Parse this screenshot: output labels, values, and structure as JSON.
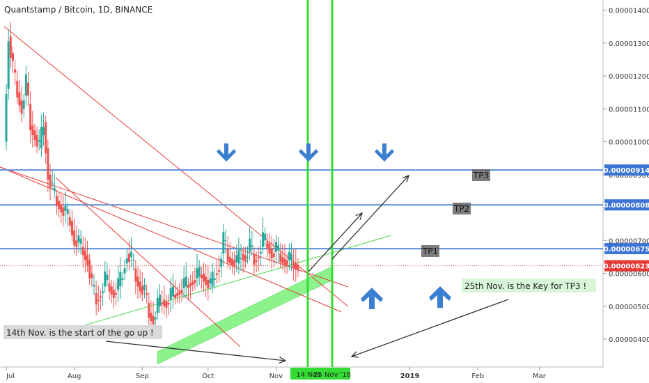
{
  "chart_data": {
    "type": "candlestick",
    "title": "Quantstamp / Bitcoin, 1D, BINANCE",
    "y_ticks": [
      "0.00001400",
      "0.00001300",
      "0.00001200",
      "0.00001100",
      "0.00001000",
      "0.00000900",
      "0.00000800",
      "0.00000700",
      "0.00000600",
      "0.00000500",
      "0.00000400"
    ],
    "y_tick_values": [
      1400,
      1300,
      1200,
      1100,
      1000,
      900,
      800,
      700,
      600,
      500,
      400
    ],
    "y_unit_scale": 1e-08,
    "ylim": [
      325,
      1450
    ],
    "x_ticks": [
      "Jul",
      "Aug",
      "Sep",
      "Oct",
      "Nov",
      "2019",
      "Feb",
      "Mar"
    ],
    "x_tick_days": [
      0,
      31,
      62,
      92,
      123,
      184,
      215,
      243
    ],
    "xlim_days": [
      -2,
      300
    ],
    "horizontal_levels": [
      {
        "value": 914,
        "label": "0.00000914",
        "tp": "TP3"
      },
      {
        "value": 808,
        "label": "0.00000808",
        "tp": "TP2"
      },
      {
        "value": 675,
        "label": "0.00000675",
        "tp": "TP1"
      }
    ],
    "current_price": {
      "value": 623,
      "label": "0.00000623"
    },
    "vertical_lines": [
      {
        "day": 136,
        "label": "14 Nov"
      },
      {
        "day": 147,
        "label": "25 Nov '18"
      }
    ],
    "candles_close_path": [
      [
        0,
        1000
      ],
      [
        2,
        1320
      ],
      [
        4,
        1220
      ],
      [
        6,
        1150
      ],
      [
        8,
        1100
      ],
      [
        10,
        1180
      ],
      [
        12,
        1050
      ],
      [
        14,
        1020
      ],
      [
        16,
        980
      ],
      [
        18,
        1060
      ],
      [
        20,
        900
      ],
      [
        22,
        850
      ],
      [
        24,
        820
      ],
      [
        26,
        800
      ],
      [
        28,
        780
      ],
      [
        30,
        760
      ],
      [
        32,
        700
      ],
      [
        34,
        690
      ],
      [
        36,
        670
      ],
      [
        38,
        640
      ],
      [
        40,
        560
      ],
      [
        42,
        520
      ],
      [
        44,
        540
      ],
      [
        46,
        580
      ],
      [
        48,
        560
      ],
      [
        50,
        540
      ],
      [
        52,
        560
      ],
      [
        54,
        600
      ],
      [
        56,
        660
      ],
      [
        58,
        640
      ],
      [
        60,
        590
      ],
      [
        62,
        560
      ],
      [
        64,
        540
      ],
      [
        66,
        480
      ],
      [
        68,
        460
      ],
      [
        70,
        500
      ],
      [
        72,
        520
      ],
      [
        74,
        510
      ],
      [
        76,
        530
      ],
      [
        78,
        540
      ],
      [
        80,
        550
      ],
      [
        82,
        560
      ],
      [
        84,
        570
      ],
      [
        86,
        580
      ],
      [
        88,
        590
      ],
      [
        90,
        600
      ],
      [
        92,
        580
      ],
      [
        94,
        560
      ],
      [
        96,
        600
      ],
      [
        98,
        620
      ],
      [
        100,
        700
      ],
      [
        102,
        650
      ],
      [
        104,
        640
      ],
      [
        106,
        630
      ],
      [
        108,
        660
      ],
      [
        110,
        650
      ],
      [
        112,
        680
      ],
      [
        114,
        640
      ],
      [
        116,
        660
      ],
      [
        118,
        700
      ],
      [
        120,
        690
      ],
      [
        122,
        660
      ],
      [
        124,
        670
      ],
      [
        126,
        650
      ],
      [
        128,
        640
      ],
      [
        130,
        640
      ],
      [
        132,
        630
      ],
      [
        134,
        623
      ]
    ],
    "annotations": [
      "14th Nov. is the start of the go up !",
      "25th Nov. is the Key for TP3 !"
    ]
  }
}
